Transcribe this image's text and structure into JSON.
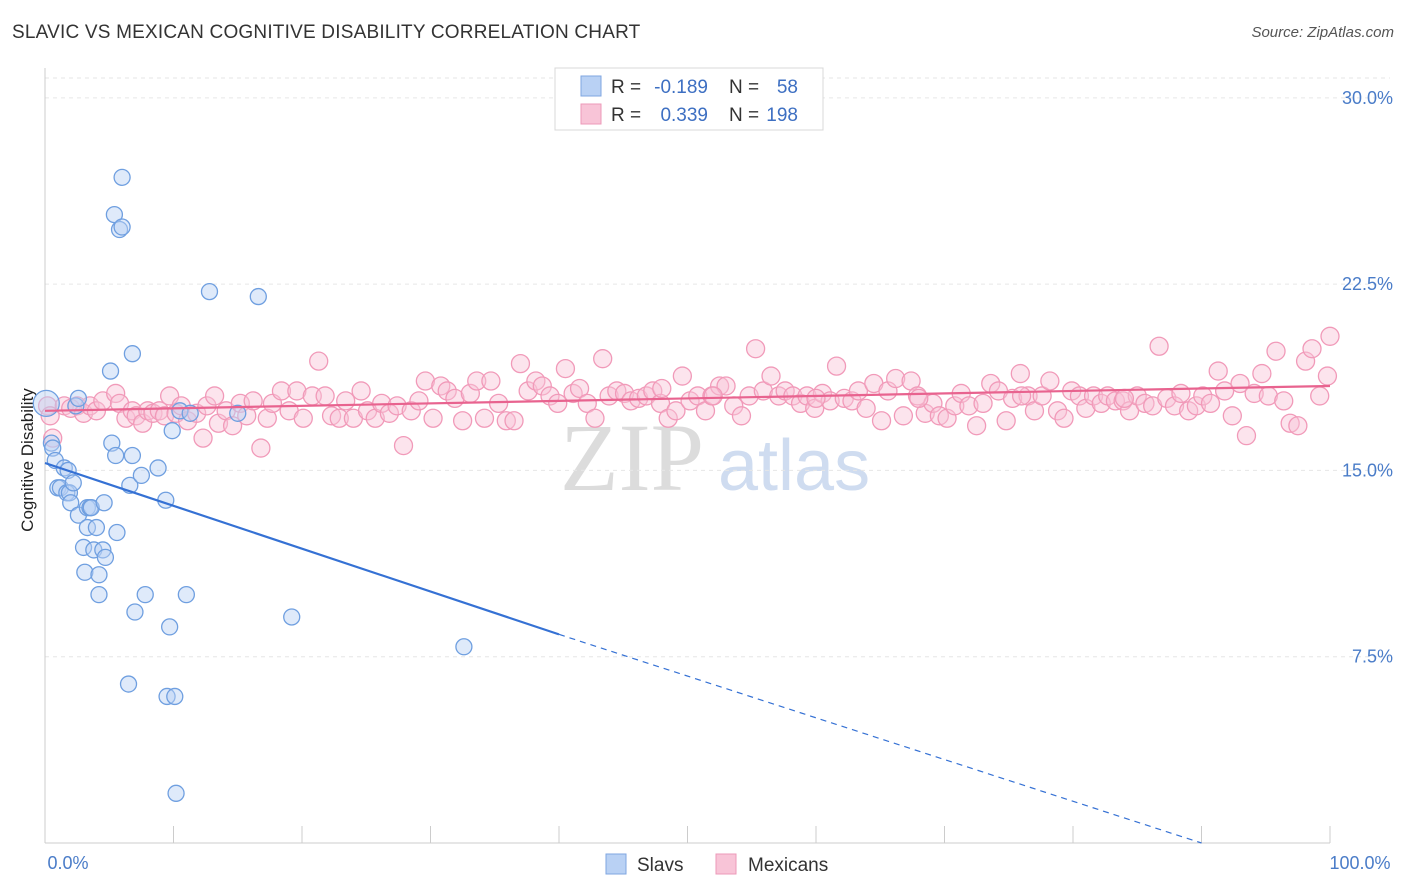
{
  "title": "SLAVIC VS MEXICAN COGNITIVE DISABILITY CORRELATION CHART",
  "source": "Source: ZipAtlas.com",
  "watermark": {
    "zip": "ZIP",
    "atlas": "atlas"
  },
  "chart_data": {
    "type": "scatter",
    "title": "SLAVIC VS MEXICAN COGNITIVE DISABILITY CORRELATION CHART",
    "xlabel": "",
    "ylabel": "Cognitive Disability",
    "xlim": [
      0,
      100
    ],
    "ylim": [
      0,
      30.8
    ],
    "x_tick_labels": [
      "0.0%",
      "100.0%"
    ],
    "y_ticks": [
      7.5,
      15.0,
      22.5,
      30.0
    ],
    "y_tick_labels": [
      "7.5%",
      "15.0%",
      "22.5%",
      "30.0%"
    ],
    "grid": true,
    "legend_position": "top-center",
    "colors": {
      "slavs": "#6f9fe0",
      "slavs_line": "#3571d4",
      "mexicans": "#f19ab9",
      "mexicans_line": "#e8638f"
    },
    "legend": {
      "rows": [
        {
          "r_label": "R =",
          "r_value": "-0.189",
          "n_label": "N =",
          "n_value": "58"
        },
        {
          "r_label": "R =",
          "r_value": "0.339",
          "n_label": "N =",
          "n_value": "198"
        }
      ]
    },
    "series": [
      {
        "name": "Slavs",
        "trend": {
          "x0": 0,
          "y0": 15.3,
          "x1": 40,
          "y1": 8.4,
          "x_dash_end": 90,
          "y_dash_end": 0
        },
        "points": [
          [
            0.1,
            17.7
          ],
          [
            0.5,
            16.1
          ],
          [
            0.6,
            15.9
          ],
          [
            0.8,
            15.4
          ],
          [
            1.0,
            14.3
          ],
          [
            1.2,
            14.3
          ],
          [
            1.5,
            15.1
          ],
          [
            1.7,
            14.1
          ],
          [
            1.9,
            14.1
          ],
          [
            1.8,
            15.0
          ],
          [
            2.0,
            13.7
          ],
          [
            2.2,
            14.5
          ],
          [
            2.4,
            17.6
          ],
          [
            2.6,
            13.2
          ],
          [
            2.6,
            17.9
          ],
          [
            3.0,
            11.9
          ],
          [
            3.1,
            10.9
          ],
          [
            3.3,
            13.5
          ],
          [
            3.3,
            12.7
          ],
          [
            3.5,
            13.5
          ],
          [
            3.6,
            13.5
          ],
          [
            3.8,
            11.8
          ],
          [
            4.0,
            12.7
          ],
          [
            4.2,
            10.8
          ],
          [
            4.2,
            10.0
          ],
          [
            4.5,
            11.8
          ],
          [
            4.6,
            13.7
          ],
          [
            4.7,
            11.5
          ],
          [
            5.1,
            19.0
          ],
          [
            5.2,
            16.1
          ],
          [
            5.4,
            25.3
          ],
          [
            5.5,
            15.6
          ],
          [
            5.6,
            12.5
          ],
          [
            5.8,
            24.7
          ],
          [
            6.0,
            26.8
          ],
          [
            6.0,
            24.8
          ],
          [
            6.5,
            6.4
          ],
          [
            6.6,
            14.4
          ],
          [
            6.8,
            15.6
          ],
          [
            6.8,
            19.7
          ],
          [
            7.0,
            9.3
          ],
          [
            7.5,
            14.8
          ],
          [
            7.8,
            10.0
          ],
          [
            8.8,
            15.1
          ],
          [
            9.4,
            13.8
          ],
          [
            9.5,
            5.9
          ],
          [
            9.7,
            8.7
          ],
          [
            9.9,
            16.6
          ],
          [
            10.1,
            5.9
          ],
          [
            10.2,
            2.0
          ],
          [
            10.5,
            17.4
          ],
          [
            11.0,
            10.0
          ],
          [
            11.3,
            17.3
          ],
          [
            12.8,
            22.2
          ],
          [
            16.6,
            22.0
          ],
          [
            19.2,
            9.1
          ],
          [
            32.6,
            7.9
          ],
          [
            15.0,
            17.3
          ]
        ]
      },
      {
        "name": "Mexicans",
        "trend": {
          "x0": 0,
          "y0": 17.4,
          "x1": 100,
          "y1": 18.4
        },
        "points": [
          [
            0.2,
            17.6
          ],
          [
            0.4,
            17.2
          ],
          [
            0.6,
            16.3
          ],
          [
            1.5,
            17.6
          ],
          [
            2.0,
            17.5
          ],
          [
            2.5,
            17.6
          ],
          [
            3.0,
            17.3
          ],
          [
            3.5,
            17.6
          ],
          [
            4.0,
            17.4
          ],
          [
            4.5,
            17.8
          ],
          [
            5.5,
            18.1
          ],
          [
            5.8,
            17.7
          ],
          [
            6.3,
            17.1
          ],
          [
            6.8,
            17.4
          ],
          [
            7.1,
            17.2
          ],
          [
            7.6,
            16.9
          ],
          [
            8.0,
            17.4
          ],
          [
            8.4,
            17.3
          ],
          [
            8.9,
            17.4
          ],
          [
            9.3,
            17.2
          ],
          [
            9.7,
            18.0
          ],
          [
            10.2,
            17.3
          ],
          [
            10.6,
            17.6
          ],
          [
            11.1,
            17.0
          ],
          [
            11.8,
            17.3
          ],
          [
            12.3,
            16.3
          ],
          [
            12.6,
            17.6
          ],
          [
            13.2,
            18.0
          ],
          [
            13.5,
            16.9
          ],
          [
            14.1,
            17.4
          ],
          [
            14.6,
            16.8
          ],
          [
            15.2,
            17.7
          ],
          [
            15.7,
            17.2
          ],
          [
            16.2,
            17.8
          ],
          [
            16.8,
            15.9
          ],
          [
            17.3,
            17.1
          ],
          [
            17.7,
            17.7
          ],
          [
            18.4,
            18.2
          ],
          [
            19.0,
            17.4
          ],
          [
            19.6,
            18.2
          ],
          [
            20.1,
            17.1
          ],
          [
            20.8,
            18.0
          ],
          [
            21.3,
            19.4
          ],
          [
            21.8,
            18.0
          ],
          [
            22.3,
            17.2
          ],
          [
            22.9,
            17.1
          ],
          [
            23.4,
            17.8
          ],
          [
            24.0,
            17.1
          ],
          [
            24.6,
            18.2
          ],
          [
            25.1,
            17.4
          ],
          [
            25.7,
            17.1
          ],
          [
            26.2,
            17.7
          ],
          [
            26.8,
            17.3
          ],
          [
            27.4,
            17.6
          ],
          [
            27.9,
            16.0
          ],
          [
            28.5,
            17.4
          ],
          [
            29.1,
            17.8
          ],
          [
            29.6,
            18.6
          ],
          [
            30.2,
            17.1
          ],
          [
            30.8,
            18.4
          ],
          [
            31.3,
            18.2
          ],
          [
            31.9,
            17.9
          ],
          [
            32.5,
            17.0
          ],
          [
            33.1,
            18.1
          ],
          [
            33.6,
            18.6
          ],
          [
            34.2,
            17.1
          ],
          [
            34.7,
            18.6
          ],
          [
            35.3,
            17.7
          ],
          [
            35.9,
            17.0
          ],
          [
            36.5,
            17.0
          ],
          [
            37.0,
            19.3
          ],
          [
            37.6,
            18.2
          ],
          [
            38.2,
            18.6
          ],
          [
            38.7,
            18.4
          ],
          [
            39.3,
            18.0
          ],
          [
            39.9,
            17.7
          ],
          [
            40.5,
            19.1
          ],
          [
            41.1,
            18.1
          ],
          [
            41.6,
            18.3
          ],
          [
            42.2,
            17.7
          ],
          [
            42.8,
            17.1
          ],
          [
            43.4,
            19.5
          ],
          [
            43.9,
            18.0
          ],
          [
            44.5,
            18.2
          ],
          [
            45.1,
            18.1
          ],
          [
            45.6,
            17.8
          ],
          [
            46.2,
            17.9
          ],
          [
            46.8,
            18.0
          ],
          [
            47.3,
            18.2
          ],
          [
            47.9,
            17.7
          ],
          [
            48.5,
            17.1
          ],
          [
            49.1,
            17.4
          ],
          [
            49.6,
            18.8
          ],
          [
            50.2,
            17.8
          ],
          [
            50.8,
            18.0
          ],
          [
            51.4,
            17.4
          ],
          [
            51.9,
            18.0
          ],
          [
            52.5,
            18.4
          ],
          [
            53.0,
            18.4
          ],
          [
            53.6,
            17.6
          ],
          [
            54.2,
            17.2
          ],
          [
            54.8,
            18.0
          ],
          [
            55.3,
            19.9
          ],
          [
            55.9,
            18.2
          ],
          [
            56.5,
            18.8
          ],
          [
            57.1,
            18.0
          ],
          [
            57.6,
            18.2
          ],
          [
            58.2,
            18.0
          ],
          [
            58.8,
            17.7
          ],
          [
            59.3,
            18.0
          ],
          [
            59.9,
            17.5
          ],
          [
            60.5,
            18.1
          ],
          [
            61.1,
            17.8
          ],
          [
            61.6,
            19.2
          ],
          [
            62.2,
            17.9
          ],
          [
            62.8,
            17.8
          ],
          [
            63.3,
            18.2
          ],
          [
            63.9,
            17.5
          ],
          [
            64.5,
            18.5
          ],
          [
            65.1,
            17.0
          ],
          [
            65.6,
            18.2
          ],
          [
            66.2,
            18.7
          ],
          [
            66.8,
            17.2
          ],
          [
            67.4,
            18.6
          ],
          [
            67.9,
            18.0
          ],
          [
            68.5,
            17.3
          ],
          [
            69.1,
            17.7
          ],
          [
            69.6,
            17.2
          ],
          [
            70.2,
            17.1
          ],
          [
            70.8,
            17.6
          ],
          [
            71.3,
            18.1
          ],
          [
            71.9,
            17.6
          ],
          [
            72.5,
            16.8
          ],
          [
            73.0,
            17.7
          ],
          [
            73.6,
            18.5
          ],
          [
            74.2,
            18.2
          ],
          [
            74.8,
            17.0
          ],
          [
            75.3,
            17.9
          ],
          [
            75.9,
            18.9
          ],
          [
            76.5,
            18.0
          ],
          [
            77.0,
            17.4
          ],
          [
            77.6,
            18.0
          ],
          [
            78.2,
            18.6
          ],
          [
            78.8,
            17.4
          ],
          [
            79.3,
            17.1
          ],
          [
            79.9,
            18.2
          ],
          [
            80.5,
            18.0
          ],
          [
            81.0,
            17.5
          ],
          [
            81.6,
            18.0
          ],
          [
            82.2,
            17.7
          ],
          [
            82.7,
            18.0
          ],
          [
            83.3,
            17.8
          ],
          [
            83.9,
            17.8
          ],
          [
            84.4,
            17.4
          ],
          [
            85.0,
            18.0
          ],
          [
            85.6,
            17.7
          ],
          [
            86.2,
            17.6
          ],
          [
            86.7,
            20.0
          ],
          [
            87.3,
            17.9
          ],
          [
            87.9,
            17.6
          ],
          [
            88.4,
            18.1
          ],
          [
            89.0,
            17.4
          ],
          [
            89.6,
            17.6
          ],
          [
            90.1,
            18.0
          ],
          [
            90.7,
            17.7
          ],
          [
            91.3,
            19.0
          ],
          [
            91.8,
            18.2
          ],
          [
            92.4,
            17.2
          ],
          [
            93.0,
            18.5
          ],
          [
            93.5,
            16.4
          ],
          [
            94.1,
            18.1
          ],
          [
            94.7,
            18.9
          ],
          [
            95.2,
            18.0
          ],
          [
            95.8,
            19.8
          ],
          [
            96.4,
            17.8
          ],
          [
            96.9,
            16.9
          ],
          [
            97.5,
            16.8
          ],
          [
            98.1,
            19.4
          ],
          [
            98.6,
            19.9
          ],
          [
            99.2,
            18.0
          ],
          [
            99.8,
            18.8
          ],
          [
            100.0,
            20.4
          ],
          [
            48.0,
            18.3
          ],
          [
            52.0,
            18.0
          ],
          [
            60.0,
            17.9
          ],
          [
            68.0,
            17.9
          ],
          [
            76.0,
            18.0
          ],
          [
            84.0,
            17.9
          ]
        ]
      }
    ]
  }
}
